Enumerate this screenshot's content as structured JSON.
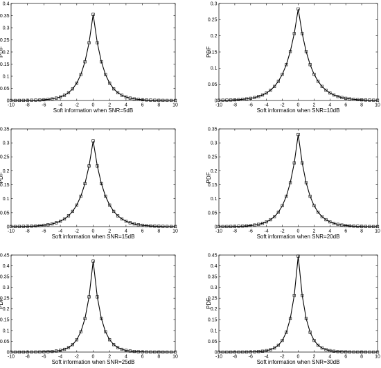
{
  "chart_data": [
    {
      "type": "line",
      "xlabel": "Soft information when SNR=5dB",
      "ylabel": "PDF",
      "xlim": [
        -10,
        10
      ],
      "ylim": [
        0,
        0.4
      ],
      "xticks": [
        "-10",
        "-8",
        "-6",
        "-4",
        "-2",
        "0",
        "2",
        "4",
        "6",
        "8",
        "10"
      ],
      "yticks": [
        "0",
        "0.05",
        "0.1",
        "0.15",
        "0.2",
        "0.25",
        "0.3",
        "0.35",
        "0.4"
      ],
      "grid": false,
      "marker": "square",
      "color": "#000000",
      "peak": 0.355,
      "scale": 1.25
    },
    {
      "type": "line",
      "xlabel": "Soft information when SNR=10dB",
      "ylabel": "PDF",
      "xlim": [
        -10,
        10
      ],
      "ylim": [
        0,
        0.3
      ],
      "xticks": [
        "-10",
        "-8",
        "-6",
        "-4",
        "-2",
        "0",
        "2",
        "4",
        "6",
        "8",
        "10"
      ],
      "yticks": [
        "0",
        "0.05",
        "0.1",
        "0.15",
        "0.2",
        "0.25",
        "0.3"
      ],
      "grid": false,
      "marker": "square",
      "color": "#000000",
      "peak": 0.283,
      "scale": 1.6
    },
    {
      "type": "line",
      "xlabel": "Soft information when SNR=15dB",
      "ylabel": "PDF",
      "xlim": [
        -10,
        10
      ],
      "ylim": [
        0,
        0.35
      ],
      "xticks": [
        "-10",
        "-8",
        "-6",
        "-4",
        "-2",
        "0",
        "2",
        "4",
        "6",
        "8",
        "10"
      ],
      "yticks": [
        "0",
        "0.05",
        "0.1",
        "0.15",
        "0.2",
        "0.25",
        "0.3",
        "0.35"
      ],
      "grid": false,
      "marker": "square",
      "color": "#000000",
      "peak": 0.307,
      "scale": 1.45
    },
    {
      "type": "line",
      "xlabel": "Soft information when SNR=20dB",
      "ylabel": "PDF",
      "xlim": [
        -10,
        10
      ],
      "ylim": [
        0,
        0.35
      ],
      "xticks": [
        "-10",
        "-8",
        "-6",
        "-4",
        "-2",
        "0",
        "2",
        "4",
        "6",
        "8",
        "10"
      ],
      "yticks": [
        "0",
        "0.05",
        "0.1",
        "0.15",
        "0.2",
        "0.25",
        "0.3",
        "0.35"
      ],
      "grid": false,
      "marker": "square",
      "color": "#000000",
      "peak": 0.33,
      "scale": 1.35
    },
    {
      "type": "line",
      "xlabel": "Soft information when SNR=25dB",
      "ylabel": "PDF",
      "xlim": [
        -10,
        10
      ],
      "ylim": [
        0,
        0.45
      ],
      "xticks": [
        "-10",
        "-8",
        "-6",
        "-4",
        "-2",
        "0",
        "2",
        "4",
        "6",
        "8",
        "10"
      ],
      "yticks": [
        "0",
        "0.05",
        "0.1",
        "0.15",
        "0.2",
        "0.25",
        "0.3",
        "0.35",
        "0.4",
        "0.45"
      ],
      "grid": false,
      "marker": "square",
      "color": "#000000",
      "peak": 0.422,
      "scale": 1.0
    },
    {
      "type": "line",
      "xlabel": "Soft information when SNR=30dB",
      "ylabel": "PDF",
      "xlim": [
        -10,
        10
      ],
      "ylim": [
        0,
        0.45
      ],
      "xticks": [
        "-10",
        "-8",
        "-6",
        "-4",
        "-2",
        "0",
        "2",
        "4",
        "6",
        "8",
        "10"
      ],
      "yticks": [
        "0",
        "0.05",
        "0.1",
        "0.15",
        "0.2",
        "0.25",
        "0.3",
        "0.35",
        "0.4",
        "0.45"
      ],
      "grid": false,
      "marker": "square",
      "color": "#000000",
      "peak": 0.445,
      "scale": 0.95
    }
  ]
}
